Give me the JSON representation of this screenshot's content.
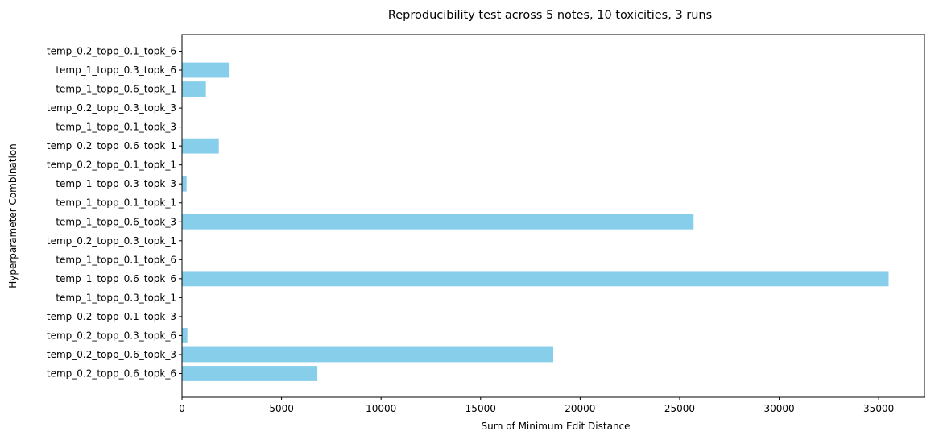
{
  "chart_data": {
    "type": "bar",
    "orientation": "horizontal",
    "title": "Reproducibility test across 5 notes, 10 toxicities, 3 runs",
    "xlabel": "Sum of Minimum Edit Distance",
    "ylabel": "Hyperparameter Combination",
    "xlim": [
      0,
      37300
    ],
    "xticks": [
      0,
      5000,
      10000,
      15000,
      20000,
      25000,
      30000,
      35000
    ],
    "grid": false,
    "legend": "none",
    "bar_color": "#87ceeb",
    "categories": [
      "temp_0.2_topp_0.1_topk_6",
      "temp_1_topp_0.3_topk_6",
      "temp_1_topp_0.6_topk_1",
      "temp_0.2_topp_0.3_topk_3",
      "temp_1_topp_0.1_topk_3",
      "temp_0.2_topp_0.6_topk_1",
      "temp_0.2_topp_0.1_topk_1",
      "temp_1_topp_0.3_topk_3",
      "temp_1_topp_0.1_topk_1",
      "temp_1_topp_0.6_topk_3",
      "temp_0.2_topp_0.3_topk_1",
      "temp_1_topp_0.1_topk_6",
      "temp_1_topp_0.6_topk_6",
      "temp_1_topp_0.3_topk_1",
      "temp_0.2_topp_0.1_topk_3",
      "temp_0.2_topp_0.3_topk_6",
      "temp_0.2_topp_0.6_topk_3",
      "temp_0.2_topp_0.6_topk_6"
    ],
    "values": [
      0,
      2350,
      1200,
      0,
      0,
      1850,
      0,
      230,
      0,
      25700,
      0,
      0,
      35500,
      0,
      0,
      270,
      18650,
      6800
    ]
  }
}
